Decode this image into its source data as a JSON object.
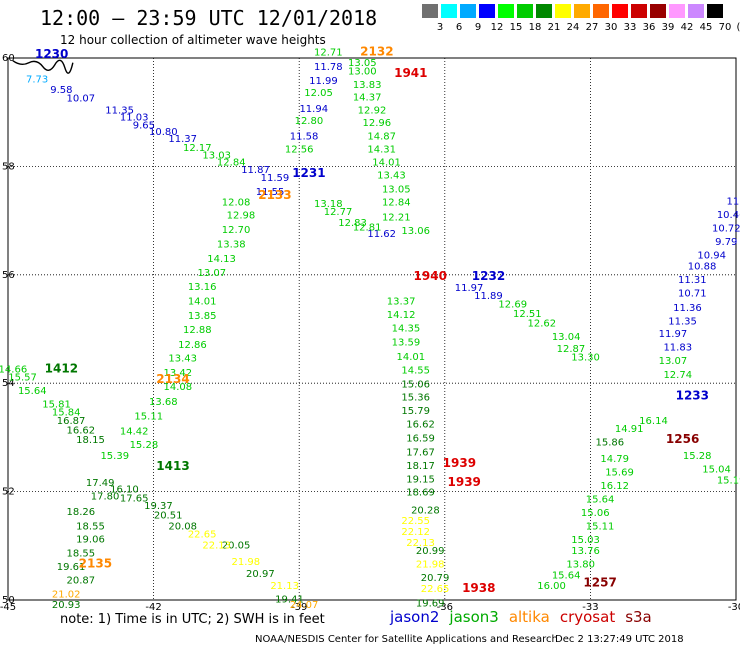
{
  "title": "12:00 – 23:59 UTC 12/01/2018",
  "subtitle": "12 hour collection of altimeter wave heights",
  "colorbar": {
    "colors": [
      "#707070",
      "#00ffff",
      "#00aaff",
      "#0000ff",
      "#00ff00",
      "#00cc00",
      "#008800",
      "#ffff00",
      "#ffaa00",
      "#ff6600",
      "#ff0000",
      "#cc0000",
      "#990000",
      "#ff99ff",
      "#cc88ff",
      "#000000"
    ],
    "labels": [
      "3",
      "6",
      "9",
      "12",
      "15",
      "18",
      "21",
      "24",
      "27",
      "30",
      "33",
      "36",
      "39",
      "42",
      "45",
      "70",
      "(ft)"
    ]
  },
  "axes": {
    "x_ticks": [
      "-45",
      "-42",
      "-39",
      "-36",
      "-33",
      "-30"
    ],
    "y_ticks": [
      "60",
      "58",
      "56",
      "54",
      "52",
      "50"
    ]
  },
  "note": "note: 1) Time is in UTC; 2) SWH is in feet",
  "legend": [
    {
      "name": "jason2",
      "color": "#0000cc"
    },
    {
      "name": "jason3",
      "color": "#00aa00"
    },
    {
      "name": "altika",
      "color": "#ff8800"
    },
    {
      "name": "cryosat",
      "color": "#cc0000"
    },
    {
      "name": "s3a",
      "color": "#880000"
    }
  ],
  "credit": "NOAA/NESDIS Center for Satellite Applications and Research",
  "timestamp": "Dec  2 13:27:49 UTC 2018",
  "pass_labels": [
    {
      "text": "1230",
      "lon": -44.1,
      "lat": 60.0,
      "color": "#0000cc"
    },
    {
      "text": "2132",
      "lon": -37.4,
      "lat": 60.05,
      "color": "#ff8800"
    },
    {
      "text": "1941",
      "lon": -36.7,
      "lat": 59.65,
      "color": "#dd0000"
    },
    {
      "text": "1231",
      "lon": -38.8,
      "lat": 57.8,
      "color": "#0000cc"
    },
    {
      "text": "2133",
      "lon": -39.5,
      "lat": 57.4,
      "color": "#ff8800"
    },
    {
      "text": "1940",
      "lon": -36.3,
      "lat": 55.9,
      "color": "#dd0000"
    },
    {
      "text": "1232",
      "lon": -35.1,
      "lat": 55.9,
      "color": "#0000cc"
    },
    {
      "text": "1412",
      "lon": -43.9,
      "lat": 54.2,
      "color": "#007700"
    },
    {
      "text": "2134",
      "lon": -41.6,
      "lat": 54.0,
      "color": "#ff8800"
    },
    {
      "text": "1233",
      "lon": -30.9,
      "lat": 53.7,
      "color": "#0000cc"
    },
    {
      "text": "1256",
      "lon": -31.1,
      "lat": 52.9,
      "color": "#880000"
    },
    {
      "text": "1413",
      "lon": -41.6,
      "lat": 52.4,
      "color": "#007700"
    },
    {
      "text": "1939",
      "lon": -35.7,
      "lat": 52.45,
      "color": "#dd0000"
    },
    {
      "text": "1939",
      "lon": -35.6,
      "lat": 52.1,
      "color": "#dd0000"
    },
    {
      "text": "2135",
      "lon": -43.2,
      "lat": 50.6,
      "color": "#ff8800"
    },
    {
      "text": "1938",
      "lon": -35.3,
      "lat": 50.15,
      "color": "#dd0000"
    },
    {
      "text": "1257",
      "lon": -32.8,
      "lat": 50.25,
      "color": "#880000"
    }
  ],
  "observations": [
    {
      "v": "9.58",
      "lon": -43.9,
      "lat": 59.35,
      "c": "#0000cc"
    },
    {
      "v": "10.07",
      "lon": -43.5,
      "lat": 59.2,
      "c": "#0000cc"
    },
    {
      "v": "11.35",
      "lon": -42.7,
      "lat": 58.98,
      "c": "#0000cc"
    },
    {
      "v": "11.03",
      "lon": -42.4,
      "lat": 58.85,
      "c": "#0000cc"
    },
    {
      "v": "9.65",
      "lon": -42.2,
      "lat": 58.7,
      "c": "#0000cc"
    },
    {
      "v": "10.80",
      "lon": -41.8,
      "lat": 58.58,
      "c": "#0000cc"
    },
    {
      "v": "11.37",
      "lon": -41.4,
      "lat": 58.45,
      "c": "#0000cc"
    },
    {
      "v": "7.73",
      "lon": -44.4,
      "lat": 59.55,
      "c": "#00aaff"
    },
    {
      "v": "12.17",
      "lon": -41.1,
      "lat": 58.28,
      "c": "#00cc00"
    },
    {
      "v": "13.03",
      "lon": -40.7,
      "lat": 58.15,
      "c": "#00cc00"
    },
    {
      "v": "12.84",
      "lon": -40.4,
      "lat": 58.02,
      "c": "#00cc00"
    },
    {
      "v": "11.87",
      "lon": -39.9,
      "lat": 57.88,
      "c": "#0000cc"
    },
    {
      "v": "11.59",
      "lon": -39.5,
      "lat": 57.73,
      "c": "#0000cc"
    },
    {
      "v": "11.55",
      "lon": -39.6,
      "lat": 57.47,
      "c": "#0000cc"
    },
    {
      "v": "11.78",
      "lon": -38.4,
      "lat": 59.78,
      "c": "#0000cc"
    },
    {
      "v": "11.99",
      "lon": -38.5,
      "lat": 59.52,
      "c": "#0000cc"
    },
    {
      "v": "12.05",
      "lon": -38.6,
      "lat": 59.3,
      "c": "#00cc00"
    },
    {
      "v": "11.94",
      "lon": -38.7,
      "lat": 59.0,
      "c": "#0000cc"
    },
    {
      "v": "12.80",
      "lon": -38.8,
      "lat": 58.78,
      "c": "#00cc00"
    },
    {
      "v": "11.58",
      "lon": -38.9,
      "lat": 58.5,
      "c": "#0000cc"
    },
    {
      "v": "12.56",
      "lon": -39.0,
      "lat": 58.26,
      "c": "#00cc00"
    },
    {
      "v": "12.08",
      "lon": -40.3,
      "lat": 57.28,
      "c": "#00cc00"
    },
    {
      "v": "12.98",
      "lon": -40.2,
      "lat": 57.04,
      "c": "#00cc00"
    },
    {
      "v": "12.70",
      "lon": -40.3,
      "lat": 56.77,
      "c": "#00cc00"
    },
    {
      "v": "13.38",
      "lon": -40.4,
      "lat": 56.5,
      "c": "#00cc00"
    },
    {
      "v": "14.13",
      "lon": -40.6,
      "lat": 56.24,
      "c": "#00cc00"
    },
    {
      "v": "13.07",
      "lon": -40.8,
      "lat": 55.98,
      "c": "#00cc00"
    },
    {
      "v": "13.16",
      "lon": -41.0,
      "lat": 55.72,
      "c": "#00cc00"
    },
    {
      "v": "14.01",
      "lon": -41.0,
      "lat": 55.45,
      "c": "#00cc00"
    },
    {
      "v": "13.85",
      "lon": -41.0,
      "lat": 55.18,
      "c": "#00cc00"
    },
    {
      "v": "12.88",
      "lon": -41.1,
      "lat": 54.93,
      "c": "#00cc00"
    },
    {
      "v": "12.86",
      "lon": -41.2,
      "lat": 54.65,
      "c": "#00cc00"
    },
    {
      "v": "13.43",
      "lon": -41.4,
      "lat": 54.4,
      "c": "#00cc00"
    },
    {
      "v": "13.42",
      "lon": -41.5,
      "lat": 54.13,
      "c": "#00cc00"
    },
    {
      "v": "14.08",
      "lon": -41.5,
      "lat": 53.87,
      "c": "#00cc00"
    },
    {
      "v": "13.68",
      "lon": -41.8,
      "lat": 53.6,
      "c": "#00cc00"
    },
    {
      "v": "15.11",
      "lon": -42.1,
      "lat": 53.33,
      "c": "#00cc00"
    },
    {
      "v": "14.42",
      "lon": -42.4,
      "lat": 53.05,
      "c": "#00cc00"
    },
    {
      "v": "15.28",
      "lon": -42.2,
      "lat": 52.8,
      "c": "#00cc00"
    },
    {
      "v": "15.39",
      "lon": -42.8,
      "lat": 52.6,
      "c": "#00cc00"
    },
    {
      "v": "16.10",
      "lon": -42.6,
      "lat": 51.98,
      "c": "#007700"
    },
    {
      "v": "17.65",
      "lon": -42.4,
      "lat": 51.82,
      "c": "#007700"
    },
    {
      "v": "19.37",
      "lon": -41.9,
      "lat": 51.68,
      "c": "#007700"
    },
    {
      "v": "20.51",
      "lon": -41.7,
      "lat": 51.5,
      "c": "#007700"
    },
    {
      "v": "20.08",
      "lon": -41.4,
      "lat": 51.3,
      "c": "#007700"
    },
    {
      "v": "20.05",
      "lon": -40.3,
      "lat": 50.95,
      "c": "#007700"
    },
    {
      "v": "20.97",
      "lon": -39.8,
      "lat": 50.42,
      "c": "#007700"
    },
    {
      "v": "19.41",
      "lon": -39.2,
      "lat": 49.95,
      "c": "#007700"
    },
    {
      "v": "14.66",
      "lon": -44.9,
      "lat": 54.2,
      "c": "#00cc00"
    },
    {
      "v": "15.57",
      "lon": -44.7,
      "lat": 54.05,
      "c": "#00cc00"
    },
    {
      "v": "15.64",
      "lon": -44.5,
      "lat": 53.8,
      "c": "#00cc00"
    },
    {
      "v": "15.81",
      "lon": -44.0,
      "lat": 53.55,
      "c": "#00cc00"
    },
    {
      "v": "15.84",
      "lon": -43.8,
      "lat": 53.4,
      "c": "#00cc00"
    },
    {
      "v": "16.87",
      "lon": -43.7,
      "lat": 53.25,
      "c": "#007700"
    },
    {
      "v": "16.62",
      "lon": -43.5,
      "lat": 53.07,
      "c": "#007700"
    },
    {
      "v": "18.15",
      "lon": -43.3,
      "lat": 52.9,
      "c": "#007700"
    },
    {
      "v": "17.49",
      "lon": -43.1,
      "lat": 52.1,
      "c": "#007700"
    },
    {
      "v": "17.80",
      "lon": -43.0,
      "lat": 51.85,
      "c": "#007700"
    },
    {
      "v": "18.26",
      "lon": -43.5,
      "lat": 51.57,
      "c": "#007700"
    },
    {
      "v": "18.55",
      "lon": -43.3,
      "lat": 51.3,
      "c": "#007700"
    },
    {
      "v": "19.06",
      "lon": -43.3,
      "lat": 51.06,
      "c": "#007700"
    },
    {
      "v": "18.55",
      "lon": -43.5,
      "lat": 50.8,
      "c": "#007700"
    },
    {
      "v": "19.61",
      "lon": -43.7,
      "lat": 50.55,
      "c": "#007700"
    },
    {
      "v": "20.87",
      "lon": -43.5,
      "lat": 50.3,
      "c": "#007700"
    },
    {
      "v": "21.02",
      "lon": -43.8,
      "lat": 50.05,
      "c": "#ffaa00"
    },
    {
      "v": "20.93",
      "lon": -43.8,
      "lat": 49.85,
      "c": "#007700"
    },
    {
      "v": "12.71",
      "lon": -38.4,
      "lat": 60.05,
      "c": "#00cc00"
    },
    {
      "v": "13.05",
      "lon": -37.7,
      "lat": 59.85,
      "c": "#00cc00"
    },
    {
      "v": "13.00",
      "lon": -37.7,
      "lat": 59.7,
      "c": "#00cc00"
    },
    {
      "v": "13.83",
      "lon": -37.6,
      "lat": 59.45,
      "c": "#00cc00"
    },
    {
      "v": "14.37",
      "lon": -37.6,
      "lat": 59.22,
      "c": "#00cc00"
    },
    {
      "v": "12.92",
      "lon": -37.5,
      "lat": 58.98,
      "c": "#00cc00"
    },
    {
      "v": "12.96",
      "lon": -37.4,
      "lat": 58.75,
      "c": "#00cc00"
    },
    {
      "v": "14.87",
      "lon": -37.3,
      "lat": 58.5,
      "c": "#00cc00"
    },
    {
      "v": "14.31",
      "lon": -37.3,
      "lat": 58.26,
      "c": "#00cc00"
    },
    {
      "v": "14.01",
      "lon": -37.2,
      "lat": 58.02,
      "c": "#00cc00"
    },
    {
      "v": "13.43",
      "lon": -37.1,
      "lat": 57.78,
      "c": "#00cc00"
    },
    {
      "v": "13.05",
      "lon": -37.0,
      "lat": 57.52,
      "c": "#00cc00"
    },
    {
      "v": "12.84",
      "lon": -37.0,
      "lat": 57.28,
      "c": "#00cc00"
    },
    {
      "v": "12.21",
      "lon": -37.0,
      "lat": 57.0,
      "c": "#00cc00"
    },
    {
      "v": "13.06",
      "lon": -36.6,
      "lat": 56.75,
      "c": "#00cc00"
    },
    {
      "v": "11.97",
      "lon": -35.5,
      "lat": 55.7,
      "c": "#0000cc"
    },
    {
      "v": "11.89",
      "lon": -35.1,
      "lat": 55.55,
      "c": "#0000cc"
    },
    {
      "v": "13.37",
      "lon": -36.9,
      "lat": 55.45,
      "c": "#00cc00"
    },
    {
      "v": "14.12",
      "lon": -36.9,
      "lat": 55.2,
      "c": "#00cc00"
    },
    {
      "v": "14.35",
      "lon": -36.8,
      "lat": 54.95,
      "c": "#00cc00"
    },
    {
      "v": "13.59",
      "lon": -36.8,
      "lat": 54.7,
      "c": "#00cc00"
    },
    {
      "v": "14.01",
      "lon": -36.7,
      "lat": 54.43,
      "c": "#00cc00"
    },
    {
      "v": "14.55",
      "lon": -36.6,
      "lat": 54.18,
      "c": "#00cc00"
    },
    {
      "v": "15.06",
      "lon": -36.6,
      "lat": 53.92,
      "c": "#007700"
    },
    {
      "v": "15.36",
      "lon": -36.6,
      "lat": 53.68,
      "c": "#007700"
    },
    {
      "v": "15.79",
      "lon": -36.6,
      "lat": 53.43,
      "c": "#007700"
    },
    {
      "v": "16.62",
      "lon": -36.5,
      "lat": 53.18,
      "c": "#007700"
    },
    {
      "v": "16.59",
      "lon": -36.5,
      "lat": 52.92,
      "c": "#007700"
    },
    {
      "v": "17.67",
      "lon": -36.5,
      "lat": 52.67,
      "c": "#007700"
    },
    {
      "v": "18.17",
      "lon": -36.5,
      "lat": 52.42,
      "c": "#007700"
    },
    {
      "v": "19.15",
      "lon": -36.5,
      "lat": 52.17,
      "c": "#007700"
    },
    {
      "v": "18.69",
      "lon": -36.5,
      "lat": 51.93,
      "c": "#007700"
    },
    {
      "v": "20.28",
      "lon": -36.4,
      "lat": 51.6,
      "c": "#007700"
    },
    {
      "v": "20.99",
      "lon": -36.3,
      "lat": 50.85,
      "c": "#007700"
    },
    {
      "v": "20.79",
      "lon": -36.2,
      "lat": 50.35,
      "c": "#007700"
    },
    {
      "v": "22.65",
      "lon": -36.2,
      "lat": 50.15,
      "c": "#ffff00"
    },
    {
      "v": "19.69",
      "lon": -36.3,
      "lat": 49.88,
      "c": "#007700"
    },
    {
      "v": "12.69",
      "lon": -34.6,
      "lat": 55.4,
      "c": "#00cc00"
    },
    {
      "v": "12.51",
      "lon": -34.3,
      "lat": 55.22,
      "c": "#00cc00"
    },
    {
      "v": "12.62",
      "lon": -34.0,
      "lat": 55.05,
      "c": "#00cc00"
    },
    {
      "v": "13.04",
      "lon": -33.5,
      "lat": 54.8,
      "c": "#00cc00"
    },
    {
      "v": "12.87",
      "lon": -33.4,
      "lat": 54.58,
      "c": "#00cc00"
    },
    {
      "v": "13.30",
      "lon": -33.1,
      "lat": 54.42,
      "c": "#00cc00"
    },
    {
      "v": "13.07",
      "lon": -31.3,
      "lat": 54.35,
      "c": "#00cc00"
    },
    {
      "v": "12.74",
      "lon": -31.2,
      "lat": 54.1,
      "c": "#00cc00"
    },
    {
      "v": "11.83",
      "lon": -31.2,
      "lat": 54.6,
      "c": "#0000cc"
    },
    {
      "v": "11.97",
      "lon": -31.3,
      "lat": 54.85,
      "c": "#0000cc"
    },
    {
      "v": "11.35",
      "lon": -31.1,
      "lat": 55.08,
      "c": "#0000cc"
    },
    {
      "v": "11.36",
      "lon": -31.0,
      "lat": 55.33,
      "c": "#0000cc"
    },
    {
      "v": "10.71",
      "lon": -30.9,
      "lat": 55.6,
      "c": "#0000cc"
    },
    {
      "v": "11.31",
      "lon": -30.9,
      "lat": 55.85,
      "c": "#0000cc"
    },
    {
      "v": "10.88",
      "lon": -30.7,
      "lat": 56.1,
      "c": "#0000cc"
    },
    {
      "v": "10.94",
      "lon": -30.5,
      "lat": 56.3,
      "c": "#0000cc"
    },
    {
      "v": "9.79",
      "lon": -30.2,
      "lat": 56.55,
      "c": "#0000cc"
    },
    {
      "v": "10.72",
      "lon": -30.2,
      "lat": 56.8,
      "c": "#0000cc"
    },
    {
      "v": "10.46",
      "lon": -30.1,
      "lat": 57.05,
      "c": "#0000cc"
    },
    {
      "v": "11.42",
      "lon": -29.9,
      "lat": 57.3,
      "c": "#0000cc"
    },
    {
      "v": "14.79",
      "lon": -32.5,
      "lat": 52.55,
      "c": "#00cc00"
    },
    {
      "v": "15.69",
      "lon": -32.4,
      "lat": 52.3,
      "c": "#00cc00"
    },
    {
      "v": "16.12",
      "lon": -32.5,
      "lat": 52.05,
      "c": "#00cc00"
    },
    {
      "v": "15.64",
      "lon": -32.8,
      "lat": 51.8,
      "c": "#00cc00"
    },
    {
      "v": "15.06",
      "lon": -32.9,
      "lat": 51.55,
      "c": "#00cc00"
    },
    {
      "v": "15.11",
      "lon": -32.8,
      "lat": 51.3,
      "c": "#00cc00"
    },
    {
      "v": "15.03",
      "lon": -33.1,
      "lat": 51.05,
      "c": "#00cc00"
    },
    {
      "v": "13.76",
      "lon": -33.1,
      "lat": 50.85,
      "c": "#00cc00"
    },
    {
      "v": "13.80",
      "lon": -33.2,
      "lat": 50.6,
      "c": "#00cc00"
    },
    {
      "v": "15.64",
      "lon": -33.5,
      "lat": 50.4,
      "c": "#00cc00"
    },
    {
      "v": "16.00",
      "lon": -33.8,
      "lat": 50.2,
      "c": "#00cc00"
    },
    {
      "v": "15.86",
      "lon": -32.6,
      "lat": 52.85,
      "c": "#007700"
    },
    {
      "v": "14.91",
      "lon": -32.2,
      "lat": 53.1,
      "c": "#00cc00"
    },
    {
      "v": "16.14",
      "lon": -31.7,
      "lat": 53.25,
      "c": "#00cc00"
    },
    {
      "v": "15.28",
      "lon": -30.8,
      "lat": 52.6,
      "c": "#00cc00"
    },
    {
      "v": "15.04",
      "lon": -30.4,
      "lat": 52.35,
      "c": "#00cc00"
    },
    {
      "v": "15.19",
      "lon": -30.1,
      "lat": 52.15,
      "c": "#00cc00"
    },
    {
      "v": "22.65",
      "lon": -41.0,
      "lat": 51.15,
      "c": "#ffff00"
    },
    {
      "v": "22.13",
      "lon": -40.7,
      "lat": 50.95,
      "c": "#ffff00"
    },
    {
      "v": "21.98",
      "lon": -40.1,
      "lat": 50.65,
      "c": "#ffff00"
    },
    {
      "v": "21.13",
      "lon": -39.3,
      "lat": 50.2,
      "c": "#ffff00"
    },
    {
      "v": "24.07",
      "lon": -38.9,
      "lat": 49.85,
      "c": "#ffaa00"
    },
    {
      "v": "22.55",
      "lon": -36.6,
      "lat": 51.4,
      "c": "#ffff00"
    },
    {
      "v": "22.12",
      "lon": -36.6,
      "lat": 51.2,
      "c": "#ffff00"
    },
    {
      "v": "22.13",
      "lon": -36.5,
      "lat": 51.0,
      "c": "#ffff00"
    },
    {
      "v": "21.98",
      "lon": -36.3,
      "lat": 50.6,
      "c": "#ffff00"
    },
    {
      "v": "11.62",
      "lon": -37.3,
      "lat": 56.7,
      "c": "#0000cc"
    },
    {
      "v": "12.77",
      "lon": -38.2,
      "lat": 57.1,
      "c": "#00cc00"
    },
    {
      "v": "13.18",
      "lon": -38.4,
      "lat": 57.25,
      "c": "#00cc00"
    },
    {
      "v": "12.83",
      "lon": -37.9,
      "lat": 56.9,
      "c": "#00cc00"
    },
    {
      "v": "12.81",
      "lon": -37.6,
      "lat": 56.82,
      "c": "#00cc00"
    }
  ]
}
